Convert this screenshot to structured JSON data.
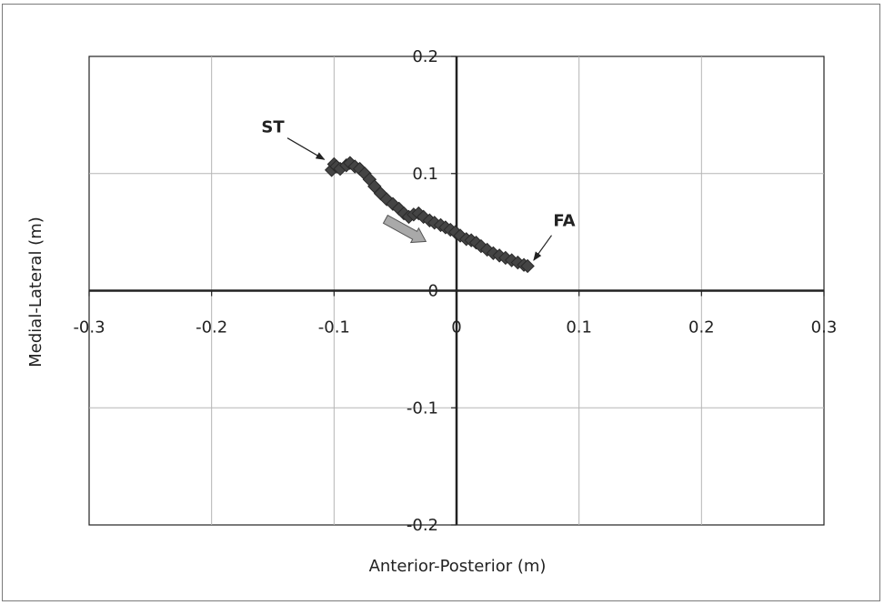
{
  "chart_data": {
    "type": "scatter",
    "title": "",
    "xlabel": "Anterior-Posterior (m)",
    "ylabel": "Medial-Lateral (m)",
    "xlim": [
      -0.3,
      0.3
    ],
    "ylim": [
      -0.2,
      0.2
    ],
    "xticks": [
      -0.3,
      -0.2,
      -0.1,
      0,
      0.1,
      0.2,
      0.3
    ],
    "yticks": [
      -0.2,
      -0.1,
      0,
      0.1,
      0.2
    ],
    "xtick_labels": [
      "-0.3",
      "-0.2",
      "-0.1",
      "0",
      "0.1",
      "0.2",
      "0.3"
    ],
    "ytick_labels": [
      "-0.2",
      "-0.1",
      "0",
      "0.1",
      "0.2"
    ],
    "grid": true,
    "legend": "none",
    "series": [
      {
        "marker_color": "#444444",
        "x": [
          -0.102,
          -0.1,
          -0.098,
          -0.095,
          -0.09,
          -0.087,
          -0.083,
          -0.079,
          -0.075,
          -0.071,
          -0.067,
          -0.062,
          -0.057,
          -0.052,
          -0.047,
          -0.043,
          -0.039,
          -0.035,
          -0.031,
          -0.027,
          -0.022,
          -0.018,
          -0.013,
          -0.009,
          -0.005,
          -0.001,
          0.003,
          0.008,
          0.012,
          0.016,
          0.02,
          0.025,
          0.03,
          0.035,
          0.04,
          0.045,
          0.05,
          0.055,
          0.058
        ],
        "y": [
          0.103,
          0.108,
          0.106,
          0.104,
          0.107,
          0.109,
          0.106,
          0.104,
          0.1,
          0.095,
          0.089,
          0.083,
          0.078,
          0.074,
          0.07,
          0.066,
          0.063,
          0.065,
          0.066,
          0.063,
          0.06,
          0.058,
          0.056,
          0.054,
          0.052,
          0.05,
          0.047,
          0.044,
          0.043,
          0.041,
          0.038,
          0.035,
          0.032,
          0.03,
          0.028,
          0.026,
          0.024,
          0.022,
          0.021
        ]
      }
    ],
    "annotations": [
      {
        "text": "ST",
        "x": -0.15,
        "y": 0.135,
        "arrow_to": [
          -0.108,
          0.112
        ]
      },
      {
        "text": "FA",
        "x": 0.088,
        "y": 0.055,
        "arrow_to": [
          0.063,
          0.026
        ]
      }
    ],
    "direction_arrow": {
      "from": [
        -0.058,
        0.061
      ],
      "to": [
        -0.025,
        0.042
      ],
      "color": "#a9a9a9"
    }
  }
}
